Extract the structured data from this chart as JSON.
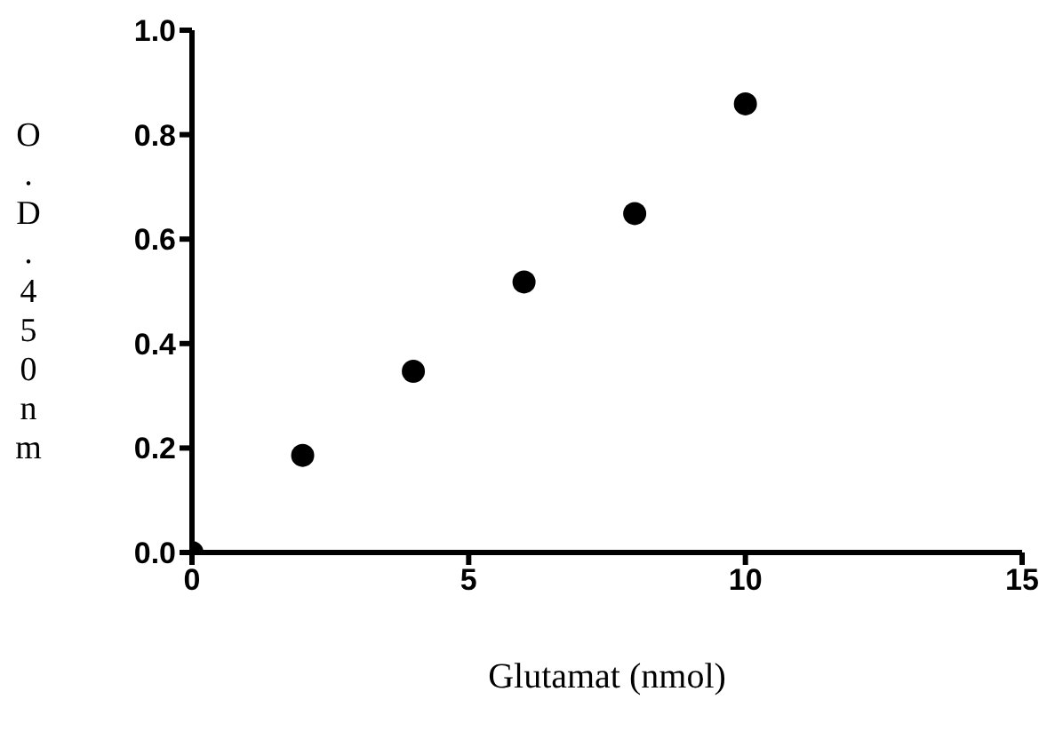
{
  "chart_data": {
    "type": "scatter",
    "xlabel": "Glutamat (nmol)",
    "ylabel": "O.D.450nm",
    "x": [
      0,
      2,
      4,
      6,
      8,
      10
    ],
    "series": [
      {
        "color": "#000000",
        "values": [
          0,
          0.186,
          0.347,
          0.518,
          0.649,
          0.859
        ]
      }
    ],
    "xlim": [
      0,
      15
    ],
    "xticks": [
      0,
      5,
      10,
      15
    ],
    "ylim": [
      0,
      1.0
    ],
    "yticks": [
      {
        "value": 0,
        "label": "0.0"
      },
      {
        "value": 0.2,
        "label": "0.2"
      },
      {
        "value": 0.4,
        "label": "0.4"
      },
      {
        "value": 0.6,
        "label": "0.6"
      },
      {
        "value": 0.8,
        "label": "0.8"
      },
      {
        "value": 1.0,
        "label": "1.0"
      }
    ],
    "marker": "circle",
    "grid": false,
    "legend": false
  }
}
